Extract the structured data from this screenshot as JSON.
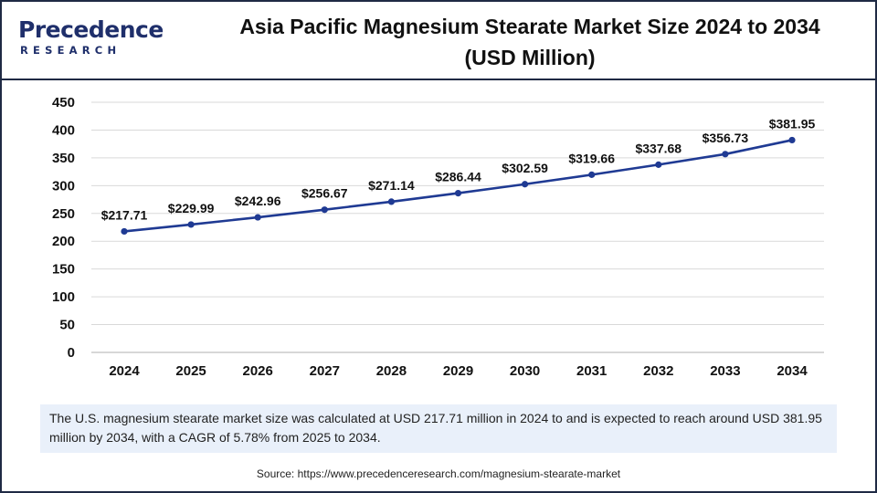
{
  "logo": {
    "name": "Precedence",
    "sub": "RESEARCH"
  },
  "title_line1": "Asia Pacific Magnesium Stearate Market Size 2024 to 2034",
  "title_line2": "(USD Million)",
  "note": "The U.S. magnesium stearate market size was calculated at USD 217.71 million in 2024 to and is expected to reach around USD 381.95 million by 2034, with a CAGR of 5.78% from 2025 to 2034.",
  "source": "Source: https://www.precedenceresearch.com/magnesium-stearate-market",
  "colors": {
    "line": "#1f3a93",
    "frame": "#1f2a44",
    "note_bg": "#e9f0fa",
    "grid": "#d9d9d9"
  },
  "chart_data": {
    "type": "line",
    "title": "Asia Pacific Magnesium Stearate Market Size 2024 to 2034 (USD Million)",
    "xlabel": "",
    "ylabel": "",
    "categories": [
      "2024",
      "2025",
      "2026",
      "2027",
      "2028",
      "2029",
      "2030",
      "2031",
      "2032",
      "2033",
      "2034"
    ],
    "values": [
      217.71,
      229.99,
      242.96,
      256.67,
      271.14,
      286.44,
      302.59,
      319.66,
      337.68,
      356.73,
      381.95
    ],
    "data_labels": [
      "$217.71",
      "$229.99",
      "$242.96",
      "$256.67",
      "$271.14",
      "$286.44",
      "$302.59",
      "$319.66",
      "$337.68",
      "$356.73",
      "$381.95"
    ],
    "ylim": [
      0,
      450
    ],
    "yticks": [
      0,
      50,
      100,
      150,
      200,
      250,
      300,
      350,
      400,
      450
    ],
    "grid": true,
    "legend": "none"
  }
}
